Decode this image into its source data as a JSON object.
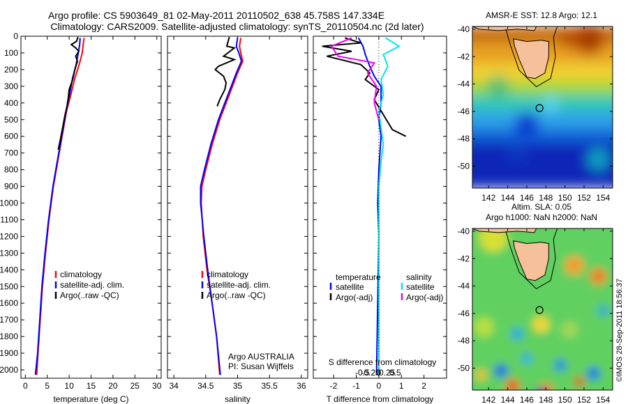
{
  "header": {
    "line1": "Argo profile: CS 5903649_81 02-May-2011 20110502_638 45.758S 147.334E",
    "line2": "Climatology: CARS2009. Satellite-adjusted climatology: synTS_20110504.nc (2d later)"
  },
  "side_label": "©IMOS 28-Sep-2011 18:56:37",
  "colors": {
    "climatology": "#ff0000",
    "satellite": "#0000ff",
    "argo": "#000000",
    "salinity_satellite": "#00e5ee",
    "salinity_argo": "#ee00ee",
    "land": "#f5c09a"
  },
  "chart_data": [
    {
      "type": "line",
      "id": "temperature",
      "xlabel": "temperature (deg C)",
      "ylabel": "",
      "xlim": [
        -1,
        31
      ],
      "ylim": [
        2050,
        0
      ],
      "xticks": [
        0,
        5,
        10,
        15,
        20,
        25,
        30
      ],
      "yticks": [
        0,
        100,
        200,
        300,
        400,
        500,
        600,
        700,
        800,
        900,
        1000,
        1100,
        1200,
        1300,
        1400,
        1500,
        1600,
        1700,
        1800,
        1900,
        2000
      ],
      "legend": [
        "climatology",
        "satellite-adj. clim.",
        "Argo(..raw -QC)"
      ],
      "legend_loc": "lower-center",
      "series": [
        {
          "name": "climatology",
          "color": "#ff0000",
          "points": [
            [
              13.4,
              10
            ],
            [
              13.2,
              50
            ],
            [
              13.0,
              100
            ],
            [
              12.3,
              170
            ],
            [
              11.3,
              250
            ],
            [
              10.4,
              350
            ],
            [
              9.4,
              450
            ],
            [
              8.4,
              600
            ],
            [
              7.4,
              750
            ],
            [
              6.4,
              900
            ],
            [
              5.4,
              1100
            ],
            [
              4.6,
              1300
            ],
            [
              3.9,
              1500
            ],
            [
              3.4,
              1700
            ],
            [
              2.9,
              1900
            ],
            [
              2.6,
              2030
            ]
          ]
        },
        {
          "name": "satellite-adj. clim.",
          "color": "#0000ff",
          "points": [
            [
              12.5,
              10
            ],
            [
              12.4,
              50
            ],
            [
              12.1,
              100
            ],
            [
              11.6,
              170
            ],
            [
              10.8,
              250
            ],
            [
              10.1,
              350
            ],
            [
              9.3,
              450
            ],
            [
              8.3,
              600
            ],
            [
              7.3,
              750
            ],
            [
              6.3,
              900
            ],
            [
              5.3,
              1100
            ],
            [
              4.5,
              1300
            ],
            [
              3.8,
              1500
            ],
            [
              3.3,
              1700
            ],
            [
              2.8,
              1900
            ],
            [
              2.3,
              2030
            ]
          ]
        },
        {
          "name": "Argo(..raw -QC)",
          "color": "#000000",
          "points": [
            [
              12.0,
              5
            ],
            [
              11.7,
              30
            ],
            [
              10.5,
              50
            ],
            [
              11.5,
              70
            ],
            [
              12.2,
              90
            ],
            [
              11.5,
              120
            ],
            [
              11.9,
              150
            ],
            [
              11.3,
              200
            ],
            [
              10.8,
              260
            ],
            [
              10.0,
              320
            ],
            [
              9.8,
              370
            ],
            [
              9.5,
              420
            ],
            [
              9.0,
              480
            ],
            [
              8.5,
              550
            ],
            [
              8.0,
              620
            ],
            [
              7.5,
              680
            ]
          ]
        }
      ]
    },
    {
      "type": "line",
      "id": "salinity",
      "xlabel": "salinity",
      "ylabel": "",
      "xlim": [
        33.9,
        36.1
      ],
      "ylim": [
        2050,
        0
      ],
      "xticks": [
        34,
        34.5,
        35,
        35.5,
        36
      ],
      "legend": [
        "climatology",
        "satellite-adj. clim.",
        "Argo(..raw -QC)"
      ],
      "legend_loc": "lower-center",
      "annotation": [
        "Argo AUSTRALIA",
        "PI: Susan Wijffels"
      ],
      "series": [
        {
          "name": "climatology",
          "color": "#ff0000",
          "points": [
            [
              35.05,
              10
            ],
            [
              35.03,
              60
            ],
            [
              35.05,
              100
            ],
            [
              35.08,
              150
            ],
            [
              35.0,
              220
            ],
            [
              34.92,
              300
            ],
            [
              34.82,
              400
            ],
            [
              34.72,
              500
            ],
            [
              34.6,
              650
            ],
            [
              34.5,
              800
            ],
            [
              34.44,
              900
            ],
            [
              34.43,
              1000
            ],
            [
              34.46,
              1200
            ],
            [
              34.52,
              1400
            ],
            [
              34.6,
              1600
            ],
            [
              34.67,
              1800
            ],
            [
              34.72,
              2030
            ]
          ]
        },
        {
          "name": "satellite-adj. clim.",
          "color": "#0000ff",
          "points": [
            [
              35.0,
              10
            ],
            [
              34.98,
              60
            ],
            [
              35.02,
              100
            ],
            [
              35.06,
              150
            ],
            [
              34.98,
              220
            ],
            [
              34.9,
              300
            ],
            [
              34.8,
              400
            ],
            [
              34.7,
              500
            ],
            [
              34.58,
              650
            ],
            [
              34.48,
              800
            ],
            [
              34.42,
              900
            ],
            [
              34.42,
              1000
            ],
            [
              34.47,
              1200
            ],
            [
              34.53,
              1400
            ],
            [
              34.6,
              1600
            ],
            [
              34.67,
              1800
            ],
            [
              34.73,
              2030
            ]
          ]
        },
        {
          "name": "Argo(..raw -QC)",
          "color": "#000000",
          "points": [
            [
              34.87,
              5
            ],
            [
              34.83,
              60
            ],
            [
              34.95,
              70
            ],
            [
              34.78,
              120
            ],
            [
              34.95,
              140
            ],
            [
              34.7,
              180
            ],
            [
              34.65,
              200
            ],
            [
              34.78,
              240
            ],
            [
              34.82,
              280
            ],
            [
              34.8,
              320
            ],
            [
              34.72,
              380
            ],
            [
              34.68,
              420
            ]
          ]
        }
      ]
    },
    {
      "type": "line",
      "id": "difference",
      "xlabel": "T difference from climatology",
      "xlabel_top": "S difference from climatology",
      "ylabel": "",
      "xlim": [
        -2.9,
        3.0
      ],
      "ylim": [
        2050,
        0
      ],
      "xticks": [
        -2,
        -1,
        0,
        1,
        2
      ],
      "xtick_labels": [
        "-2",
        "-1",
        "0",
        "1",
        "2"
      ],
      "sticks": [
        -0.5,
        -0.25,
        0,
        0.25,
        0.5
      ],
      "stick_labels": [
        "-0.5",
        "-0.25",
        "0",
        "0.25",
        "0.5"
      ],
      "legend": {
        "temperature_title": "temperature",
        "salinity_title": "salinity",
        "satellite": "satellite",
        "argo": "Argo(-adj)"
      },
      "series": [
        {
          "name": "temperature satellite",
          "color": "#0000ff",
          "points": [
            [
              -0.9,
              10
            ],
            [
              -0.7,
              60
            ],
            [
              -0.6,
              110
            ],
            [
              -0.4,
              180
            ],
            [
              -0.2,
              240
            ],
            [
              0.1,
              300
            ],
            [
              0.1,
              400
            ],
            [
              0.0,
              500
            ],
            [
              0.1,
              600
            ],
            [
              0.0,
              800
            ],
            [
              -0.05,
              1000
            ],
            [
              0.0,
              1200
            ],
            [
              -0.05,
              1600
            ],
            [
              -0.1,
              2030
            ]
          ]
        },
        {
          "name": "temperature Argo(-adj)",
          "color": "#000000",
          "points": [
            [
              -1.5,
              10
            ],
            [
              -0.8,
              40
            ],
            [
              -2.5,
              60
            ],
            [
              -1.2,
              90
            ],
            [
              -2.3,
              120
            ],
            [
              -0.8,
              170
            ],
            [
              -0.4,
              220
            ],
            [
              -0.6,
              260
            ],
            [
              0.0,
              320
            ],
            [
              -0.2,
              380
            ],
            [
              0.6,
              560
            ],
            [
              1.2,
              600
            ]
          ]
        },
        {
          "name": "salinity satellite",
          "color": "#00e5ee",
          "points": [
            [
              0.3,
              10
            ],
            [
              0.9,
              60
            ],
            [
              0.2,
              110
            ],
            [
              0.4,
              180
            ],
            [
              0.1,
              260
            ],
            [
              0.2,
              350
            ],
            [
              0.0,
              450
            ],
            [
              0.1,
              550
            ],
            [
              0.2,
              650
            ],
            [
              0.1,
              750
            ],
            [
              0.0,
              900
            ],
            [
              0.0,
              1200
            ],
            [
              0.0,
              2030
            ]
          ]
        },
        {
          "name": "salinity Argo(-adj)",
          "color": "#ee00ee",
          "points": [
            [
              -1.2,
              10
            ],
            [
              -2.1,
              60
            ],
            [
              -1.8,
              120
            ],
            [
              -0.2,
              160
            ],
            [
              -0.5,
              220
            ],
            [
              -0.1,
              300
            ],
            [
              -0.2,
              400
            ],
            [
              0.0,
              500
            ]
          ]
        }
      ]
    },
    {
      "type": "heatmap",
      "id": "sst-map",
      "title": "AMSR-E SST: 12.8  Argo: 12.1",
      "xlim": [
        140.3,
        155
      ],
      "ylim": [
        -51.6,
        -39.8
      ],
      "xticks": [
        142,
        144,
        146,
        148,
        150,
        152,
        154
      ],
      "yticks": [
        -40,
        -42,
        -44,
        -46,
        -48,
        -50
      ],
      "marker": {
        "lon": 147.334,
        "lat": -45.758
      }
    },
    {
      "type": "heatmap",
      "id": "sla-map",
      "title_line1": "Altim. SLA: 0.05",
      "title_line2": "Argo h1000: NaN h2000: NaN",
      "xlim": [
        140.3,
        155
      ],
      "ylim": [
        -51.6,
        -39.8
      ],
      "xticks": [
        142,
        144,
        146,
        148,
        150,
        152,
        154
      ],
      "yticks": [
        -40,
        -42,
        -44,
        -46,
        -48,
        -50
      ],
      "marker": {
        "lon": 147.334,
        "lat": -45.758
      }
    }
  ]
}
